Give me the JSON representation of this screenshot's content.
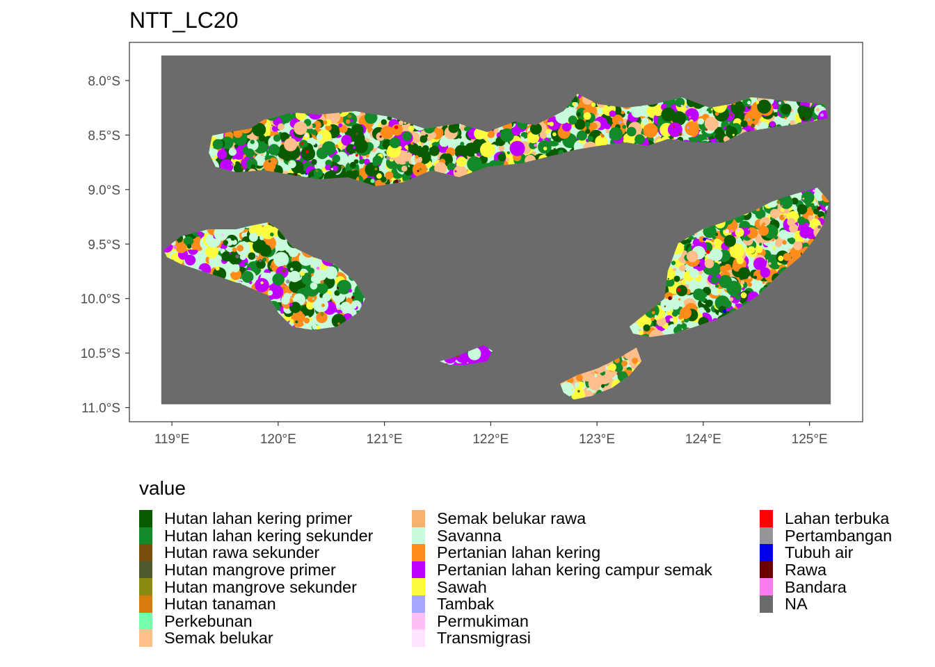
{
  "title": "NTT_LC20",
  "map": {
    "x_ticks": [
      "119°E",
      "120°E",
      "121°E",
      "122°E",
      "123°E",
      "124°E",
      "125°E"
    ],
    "x_values": [
      119,
      120,
      121,
      122,
      123,
      124,
      125
    ],
    "y_ticks": [
      "8.0°S",
      "8.5°S",
      "9.0°S",
      "9.5°S",
      "10.0°S",
      "10.5°S",
      "11.0°S"
    ],
    "y_values": [
      8.0,
      8.5,
      9.0,
      9.5,
      10.0,
      10.5,
      11.0
    ],
    "xlim": [
      118.6,
      125.5
    ],
    "ylim": [
      7.65,
      11.13
    ],
    "extent_lon": [
      118.9,
      125.2
    ],
    "extent_lat": [
      7.77,
      10.97
    ],
    "background_color": "#6b6b6b",
    "islands": [
      "Flores",
      "Sumba",
      "Timor",
      "Sabu",
      "Rote"
    ]
  },
  "legend": {
    "title": "value",
    "columns": [
      [
        {
          "label": "Hutan lahan kering primer",
          "color": "#0a5a00"
        },
        {
          "label": "Hutan lahan kering sekunder",
          "color": "#138a2a"
        },
        {
          "label": "Hutan rawa sekunder",
          "color": "#7a4e0c"
        },
        {
          "label": "Hutan mangrove primer",
          "color": "#4f5a2e"
        },
        {
          "label": "Hutan mangrove sekunder",
          "color": "#8a8a12"
        },
        {
          "label": "Hutan tanaman",
          "color": "#d97a0e"
        },
        {
          "label": "Perkebunan",
          "color": "#77ffb0"
        },
        {
          "label": "Semak belukar",
          "color": "#ffbf8a"
        }
      ],
      [
        {
          "label": "Semak belukar rawa",
          "color": "#f7b26e"
        },
        {
          "label": "Savanna",
          "color": "#c7fbdb"
        },
        {
          "label": "Pertanian lahan kering",
          "color": "#ff8c1a"
        },
        {
          "label": "Pertanian lahan kering campur semak",
          "color": "#c000ff"
        },
        {
          "label": "Sawah",
          "color": "#fdfd3f"
        },
        {
          "label": "Tambak",
          "color": "#a7a6ff"
        },
        {
          "label": "Permukiman",
          "color": "#ffbff2"
        },
        {
          "label": "Transmigrasi",
          "color": "#ffe3ff"
        }
      ],
      [
        {
          "label": "Lahan terbuka",
          "color": "#ff0000"
        },
        {
          "label": "Pertambangan",
          "color": "#969696"
        },
        {
          "label": "Tubuh air",
          "color": "#0000ee"
        },
        {
          "label": "Rawa",
          "color": "#6a0000"
        },
        {
          "label": "Bandara",
          "color": "#ff7af0"
        },
        {
          "label": "NA",
          "color": "#6b6b6b"
        }
      ]
    ]
  }
}
